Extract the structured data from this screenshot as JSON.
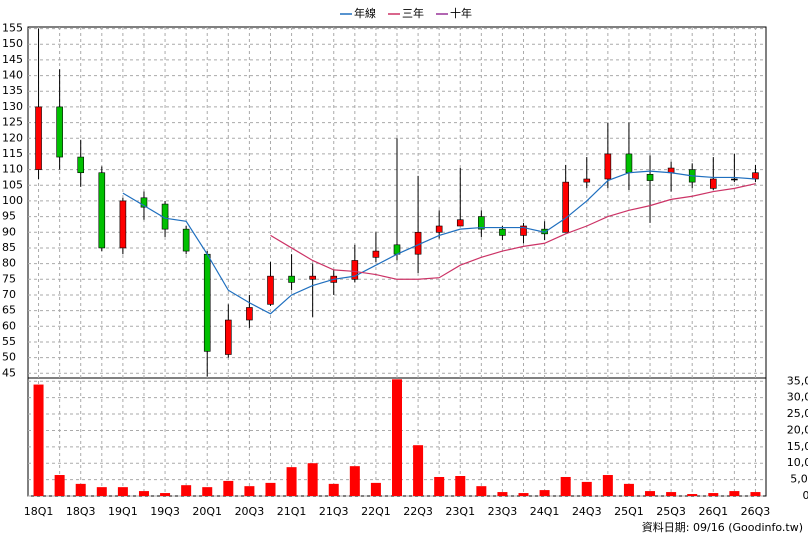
{
  "chart_data": {
    "type": "candlestick",
    "categories": [
      "18Q1",
      null,
      "18Q3",
      null,
      "19Q1",
      null,
      "19Q3",
      null,
      "20Q1",
      null,
      "20Q3",
      null,
      "21Q1",
      null,
      "21Q3",
      null,
      "22Q1",
      null,
      "22Q3",
      null,
      "23Q1",
      null,
      "23Q3",
      null,
      "24Q1",
      null,
      "24Q3",
      null,
      "25Q1",
      null,
      "25Q3",
      null,
      "26Q1",
      null,
      "26Q3"
    ],
    "open": [
      110,
      130,
      114,
      109,
      85,
      101,
      99,
      91,
      83,
      51,
      62,
      67,
      76,
      75,
      74,
      75,
      82,
      86,
      83,
      90,
      92,
      95,
      91,
      89,
      91,
      90,
      106,
      107,
      115,
      108.5,
      109,
      110,
      104,
      107,
      107
    ],
    "high": [
      155,
      142,
      119.5,
      111,
      101,
      103,
      100,
      92,
      84,
      67,
      70,
      80.5,
      83,
      80,
      78,
      86,
      90,
      120,
      108,
      97,
      110.5,
      97,
      92,
      93,
      93.5,
      111.5,
      114,
      125,
      125,
      114.5,
      112.5,
      112,
      114,
      115,
      111.5
    ],
    "low": [
      107,
      110,
      104.5,
      84,
      83,
      94,
      88.5,
      83,
      44,
      50,
      59.5,
      66.5,
      71.5,
      63,
      70,
      74,
      80.5,
      81,
      77,
      88,
      92,
      88.5,
      87.5,
      86.5,
      87.5,
      90,
      104,
      104,
      103.5,
      93,
      103,
      104,
      103.5,
      106,
      106
    ],
    "close": [
      130,
      114,
      109,
      85,
      100,
      98,
      91,
      84,
      52,
      62,
      66,
      76,
      74,
      76,
      76,
      81,
      84,
      83,
      90,
      92,
      94,
      91,
      89,
      92,
      89.5,
      106,
      107,
      115,
      109,
      106.5,
      110.5,
      106,
      107,
      107,
      109
    ],
    "up_color": "#ff0000",
    "down_color": "#00c000",
    "ylim": [
      43.5,
      155.5
    ],
    "yticks": [
      45,
      50,
      55,
      60,
      65,
      70,
      75,
      80,
      85,
      90,
      95,
      100,
      105,
      110,
      115,
      120,
      125,
      130,
      135,
      140,
      145,
      150,
      155
    ],
    "series": [
      {
        "name": "年線",
        "color": "#1f6fbf",
        "values": [
          null,
          null,
          null,
          null,
          102.5,
          98.5,
          94.5,
          93.5,
          83,
          71.5,
          67.5,
          64,
          70,
          73,
          75,
          76,
          79.5,
          83,
          86,
          89,
          91,
          91.5,
          91.5,
          91.5,
          90,
          94.5,
          100,
          106.5,
          109,
          109.5,
          109,
          108,
          107.5,
          107.5,
          107
        ]
      },
      {
        "name": "三年",
        "color": "#cc3366",
        "values": [
          null,
          null,
          null,
          null,
          null,
          null,
          null,
          null,
          null,
          null,
          null,
          89,
          85,
          81,
          78,
          77.5,
          76.5,
          75,
          75,
          75.5,
          79.5,
          82,
          84,
          85.5,
          86.5,
          89.5,
          92,
          95,
          97,
          98.5,
          100.5,
          101.5,
          103,
          104,
          105.5
        ]
      },
      {
        "name": "十年",
        "color": "#993399",
        "values": [
          null,
          null,
          null,
          null,
          null,
          null,
          null,
          null,
          null,
          null,
          null,
          null,
          null,
          null,
          null,
          null,
          null,
          null,
          null,
          null,
          null,
          null,
          null,
          null,
          null,
          null,
          null,
          null,
          null,
          null,
          null,
          null,
          null,
          null,
          null
        ]
      }
    ],
    "volume": {
      "color": "#ff0000",
      "values": [
        34000,
        6400,
        3700,
        2700,
        2700,
        1500,
        900,
        3300,
        2700,
        4600,
        3000,
        4000,
        8800,
        10000,
        3700,
        9100,
        4000,
        35600,
        15500,
        5800,
        6100,
        3000,
        1200,
        900,
        1800,
        5800,
        4300,
        6400,
        3700,
        1500,
        1200,
        600,
        900,
        1500,
        1200
      ]
    },
    "y2lim": [
      0,
      36000
    ],
    "y2ticks": [
      0,
      {
        "value": 5000,
        "label": "5,000"
      },
      {
        "value": 10000,
        "label": "10,000"
      },
      {
        "value": 15000,
        "label": "15,000"
      },
      {
        "value": 20000,
        "label": "20,000"
      },
      {
        "value": 25000,
        "label": "25,000"
      },
      {
        "value": 30000,
        "label": "30,000"
      },
      {
        "value": 35000,
        "label": "35,000"
      }
    ],
    "grid": true,
    "footer": "資料日期: 09/16 (Goodinfo.tw)"
  }
}
